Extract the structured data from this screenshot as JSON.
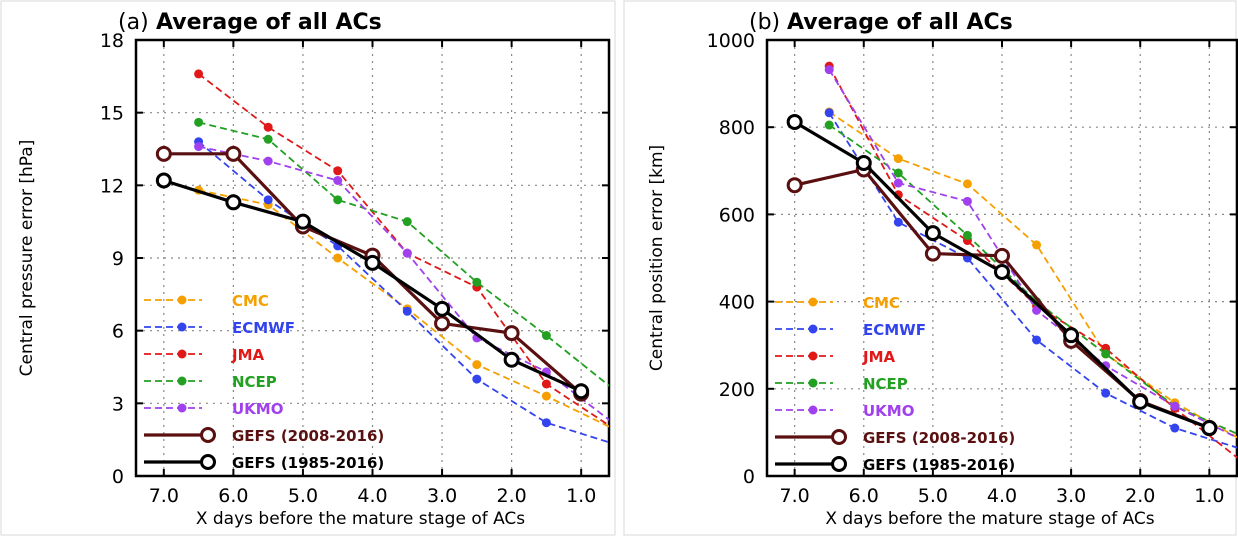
{
  "chart_data": [
    {
      "type": "line",
      "panel_label": "(a)",
      "title": "Average of all ACs",
      "xlabel": "X days before the mature stage of ACs",
      "ylabel": "Central pressure error [hPa]",
      "xlim": [
        7.4,
        0.6
      ],
      "ylim": [
        0,
        18
      ],
      "x_ticks": [
        "7.0",
        "6.0",
        "5.0",
        "4.0",
        "3.0",
        "2.0",
        "1.0"
      ],
      "y_ticks": [
        "0",
        "3",
        "6",
        "9",
        "12",
        "15",
        "18"
      ],
      "grid": true,
      "legend_position": "bottom-left",
      "series": [
        {
          "name": "CMC",
          "color": "#f5a000",
          "style": "dashed",
          "x": [
            6.5,
            5.5,
            4.5,
            3.5,
            2.5,
            1.5,
            0.5
          ],
          "y": [
            11.8,
            11.2,
            9.0,
            6.9,
            4.6,
            3.3,
            1.9
          ]
        },
        {
          "name": "ECMWF",
          "color": "#3344ee",
          "style": "dashed",
          "x": [
            6.5,
            5.5,
            4.5,
            3.5,
            2.5,
            1.5,
            0.5
          ],
          "y": [
            13.8,
            11.4,
            9.5,
            6.8,
            4.0,
            2.2,
            1.3
          ]
        },
        {
          "name": "JMA",
          "color": "#e01818",
          "style": "dashed",
          "x": [
            6.5,
            5.5,
            4.5,
            3.5,
            2.5,
            1.5,
            0.5
          ],
          "y": [
            16.6,
            14.4,
            12.6,
            9.2,
            7.8,
            3.8,
            1.9
          ]
        },
        {
          "name": "NCEP",
          "color": "#22a022",
          "style": "dashed",
          "x": [
            6.5,
            5.5,
            4.5,
            3.5,
            2.5,
            1.5,
            0.5
          ],
          "y": [
            14.6,
            13.9,
            11.4,
            10.5,
            8.0,
            5.8,
            3.5
          ]
        },
        {
          "name": "UKMO",
          "color": "#a040ee",
          "style": "dashed",
          "x": [
            6.5,
            5.5,
            4.5,
            3.5,
            2.5,
            1.5,
            0.5
          ],
          "y": [
            13.6,
            13.0,
            12.2,
            9.2,
            5.7,
            4.3,
            2.1
          ]
        },
        {
          "name": "GEFS (2008-2016)",
          "color": "#5a1010",
          "style": "solid",
          "x": [
            7.0,
            6.0,
            5.0,
            4.0,
            3.0,
            2.0,
            1.0
          ],
          "y": [
            13.3,
            13.3,
            10.3,
            9.1,
            6.3,
            5.9,
            3.4
          ]
        },
        {
          "name": "GEFS (1985-2016)",
          "color": "#000000",
          "style": "solid",
          "x": [
            7.0,
            6.0,
            5.0,
            4.0,
            3.0,
            2.0,
            1.0
          ],
          "y": [
            12.2,
            11.3,
            10.5,
            8.8,
            6.9,
            4.8,
            3.5
          ]
        }
      ]
    },
    {
      "type": "line",
      "panel_label": "(b)",
      "title": "Average of all ACs",
      "xlabel": "X days before the mature stage of ACs",
      "ylabel": "Central position error [km]",
      "xlim": [
        7.4,
        0.6
      ],
      "ylim": [
        0,
        1000
      ],
      "x_ticks": [
        "7.0",
        "6.0",
        "5.0",
        "4.0",
        "3.0",
        "2.0",
        "1.0"
      ],
      "y_ticks": [
        "0",
        "200",
        "400",
        "600",
        "800",
        "1000"
      ],
      "grid": true,
      "legend_position": "bottom-left",
      "series": [
        {
          "name": "CMC",
          "color": "#f5a000",
          "style": "dashed",
          "x": [
            6.5,
            5.5,
            4.5,
            3.5,
            2.5,
            1.5,
            0.5
          ],
          "y": [
            835,
            728,
            670,
            530,
            280,
            168,
            80
          ]
        },
        {
          "name": "ECMWF",
          "color": "#3344ee",
          "style": "dashed",
          "x": [
            6.5,
            5.5,
            4.5,
            3.5,
            2.5,
            1.5,
            0.5
          ],
          "y": [
            833,
            582,
            500,
            312,
            190,
            110,
            60
          ]
        },
        {
          "name": "JMA",
          "color": "#e01818",
          "style": "dashed",
          "x": [
            6.5,
            5.5,
            4.5,
            3.5,
            2.5,
            1.5,
            0.5
          ],
          "y": [
            940,
            645,
            540,
            390,
            293,
            155,
            30
          ]
        },
        {
          "name": "NCEP",
          "color": "#22a022",
          "style": "dashed",
          "x": [
            6.5,
            5.5,
            4.5,
            3.5,
            2.5,
            1.5,
            0.5
          ],
          "y": [
            805,
            695,
            552,
            400,
            280,
            160,
            90
          ]
        },
        {
          "name": "UKMO",
          "color": "#a040ee",
          "style": "dashed",
          "x": [
            6.5,
            5.5,
            4.5,
            3.5,
            2.5,
            1.5,
            0.5
          ],
          "y": [
            932,
            672,
            630,
            380,
            253,
            160,
            80
          ]
        },
        {
          "name": "GEFS (2008-2016)",
          "color": "#5a1010",
          "style": "solid",
          "x": [
            7.0,
            6.0,
            5.0,
            4.0,
            3.0,
            2.0,
            1.0
          ],
          "y": [
            667,
            703,
            510,
            505,
            310,
            172,
            110
          ]
        },
        {
          "name": "GEFS (1985-2016)",
          "color": "#000000",
          "style": "solid",
          "x": [
            7.0,
            6.0,
            5.0,
            4.0,
            3.0,
            2.0,
            1.0
          ],
          "y": [
            812,
            718,
            557,
            468,
            323,
            170,
            110
          ]
        }
      ]
    }
  ]
}
